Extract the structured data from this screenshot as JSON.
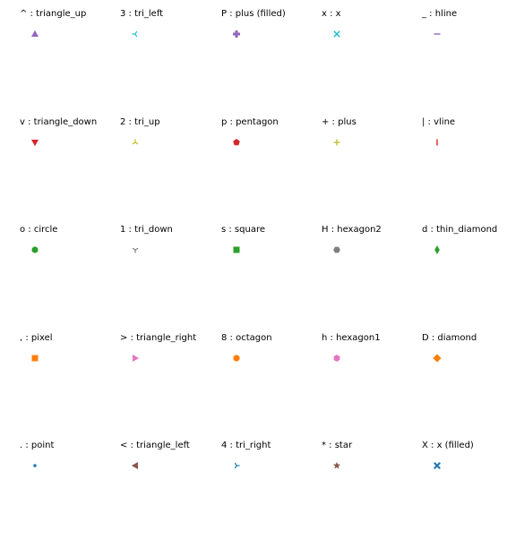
{
  "chart_data": {
    "type": "scatter",
    "title": "",
    "grid": false,
    "axes_visible": false,
    "layout": {
      "rows": 5,
      "cols": 5
    },
    "cells": [
      {
        "label": "^ : triangle_up",
        "marker": "triangle_up",
        "color": "#9467bd"
      },
      {
        "label": "3 : tri_left",
        "marker": "tri_left",
        "color": "#17becf"
      },
      {
        "label": "P : plus (filled)",
        "marker": "plus_filled",
        "color": "#9467bd"
      },
      {
        "label": "x : x",
        "marker": "x",
        "color": "#17becf"
      },
      {
        "label": "_ : hline",
        "marker": "hline",
        "color": "#9467bd"
      },
      {
        "label": "v : triangle_down",
        "marker": "triangle_down",
        "color": "#d62728"
      },
      {
        "label": "2 : tri_up",
        "marker": "tri_up",
        "color": "#bcbd22"
      },
      {
        "label": "p : pentagon",
        "marker": "pentagon",
        "color": "#d62728"
      },
      {
        "label": "+ : plus",
        "marker": "plus",
        "color": "#bcbd22"
      },
      {
        "label": "| : vline",
        "marker": "vline",
        "color": "#d62728"
      },
      {
        "label": "o : circle",
        "marker": "circle",
        "color": "#2ca02c"
      },
      {
        "label": "1 : tri_down",
        "marker": "tri_down",
        "color": "#7f7f7f"
      },
      {
        "label": "s : square",
        "marker": "square",
        "color": "#2ca02c"
      },
      {
        "label": "H : hexagon2",
        "marker": "hexagon2",
        "color": "#7f7f7f"
      },
      {
        "label": "d : thin_diamond",
        "marker": "thin_diamond",
        "color": "#2ca02c"
      },
      {
        "label": ", : pixel",
        "marker": "pixel",
        "color": "#ff7f0e"
      },
      {
        "label": "> : triangle_right",
        "marker": "triangle_right",
        "color": "#e377c2"
      },
      {
        "label": "8 : octagon",
        "marker": "octagon",
        "color": "#ff7f0e"
      },
      {
        "label": "h : hexagon1",
        "marker": "hexagon1",
        "color": "#e377c2"
      },
      {
        "label": "D : diamond",
        "marker": "diamond",
        "color": "#ff7f0e"
      },
      {
        "label": ". : point",
        "marker": "point",
        "color": "#1f77b4"
      },
      {
        "label": "< : triangle_left",
        "marker": "triangle_left",
        "color": "#8c564b"
      },
      {
        "label": "4 : tri_right",
        "marker": "tri_right",
        "color": "#1f77b4"
      },
      {
        "label": "* : star",
        "marker": "star",
        "color": "#8c564b"
      },
      {
        "label": "X : x (filled)",
        "marker": "x_filled",
        "color": "#1f77b4"
      }
    ]
  }
}
